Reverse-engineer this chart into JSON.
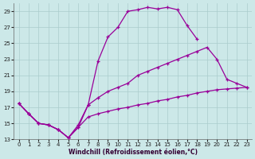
{
  "xlabel": "Windchill (Refroidissement éolien,°C)",
  "bg_color": "#cce8e8",
  "grid_color": "#aacccc",
  "line_color": "#990099",
  "xlim": [
    -0.5,
    23.5
  ],
  "ylim": [
    13,
    30
  ],
  "xticks": [
    0,
    1,
    2,
    3,
    4,
    5,
    6,
    7,
    8,
    9,
    10,
    11,
    12,
    13,
    14,
    15,
    16,
    17,
    18,
    19,
    20,
    21,
    22,
    23
  ],
  "yticks": [
    13,
    15,
    17,
    19,
    21,
    23,
    25,
    27,
    29
  ],
  "line1_x": [
    0,
    1,
    2,
    3,
    4,
    5,
    6,
    7,
    8,
    9,
    10,
    11,
    12,
    13,
    14,
    15,
    16,
    17,
    18
  ],
  "line1_y": [
    17.5,
    16.2,
    15.0,
    14.8,
    14.2,
    13.2,
    14.5,
    17.3,
    22.8,
    25.8,
    27.0,
    29.0,
    29.2,
    29.5,
    29.3,
    29.5,
    29.2,
    27.2,
    25.5
  ],
  "line2_x": [
    0,
    1,
    2,
    3,
    4,
    5,
    6,
    7,
    8,
    9,
    10,
    11,
    12,
    13,
    14,
    15,
    16,
    17,
    18,
    19,
    20,
    21,
    22,
    23
  ],
  "line2_y": [
    17.5,
    16.2,
    15.0,
    14.8,
    14.2,
    13.2,
    14.8,
    17.3,
    18.2,
    19.0,
    19.5,
    20.0,
    21.0,
    21.5,
    22.0,
    22.5,
    23.0,
    23.5,
    24.0,
    24.5,
    23.0,
    20.5,
    20.0,
    19.5
  ],
  "line3_x": [
    0,
    1,
    2,
    3,
    4,
    5,
    6,
    7,
    8,
    9,
    10,
    11,
    12,
    13,
    14,
    15,
    16,
    17,
    18,
    19,
    20,
    21,
    22,
    23
  ],
  "line3_y": [
    17.5,
    16.2,
    15.0,
    14.8,
    14.2,
    13.2,
    14.5,
    15.8,
    16.2,
    16.5,
    16.8,
    17.0,
    17.3,
    17.5,
    17.8,
    18.0,
    18.3,
    18.5,
    18.8,
    19.0,
    19.2,
    19.3,
    19.4,
    19.5
  ]
}
